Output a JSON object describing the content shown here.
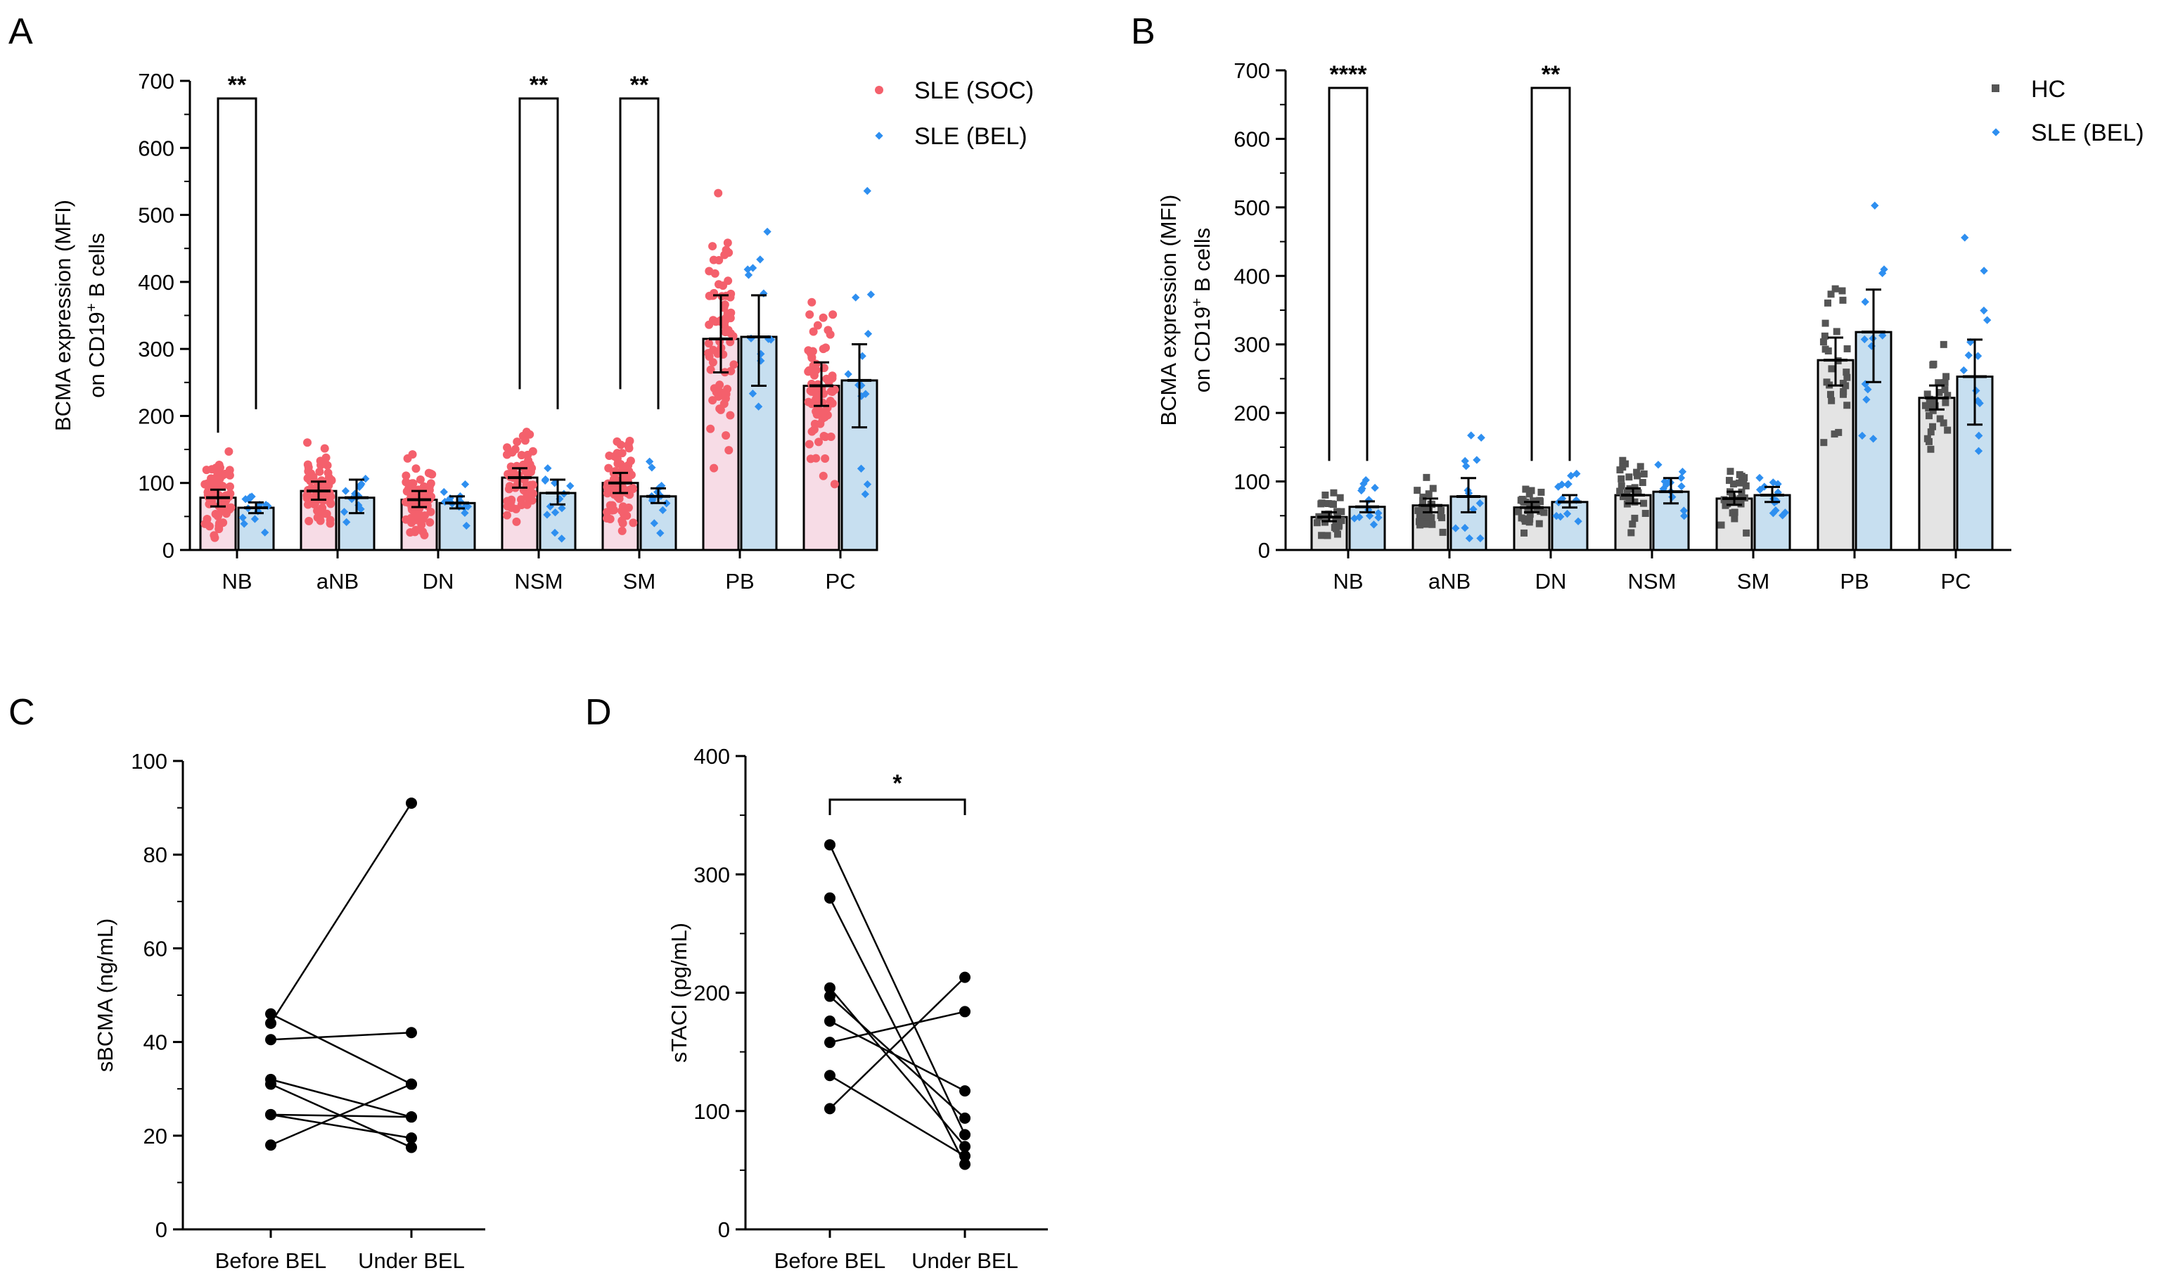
{
  "chart_data": [
    {
      "panel": "A",
      "type": "bar",
      "categories": [
        "NB",
        "aNB",
        "DN",
        "NSM",
        "SM",
        "PB",
        "PC"
      ],
      "ylabel": [
        "BCMA expression (MFI)",
        "on CD19",
        "+",
        " B cells"
      ],
      "ylim": [
        0,
        700
      ],
      "yticks": [
        0,
        100,
        200,
        300,
        400,
        500,
        600,
        700
      ],
      "legend_position": "top-right",
      "series": [
        {
          "name": "SLE (SOC)",
          "color": "#f4606c",
          "bar_color": "#f7dce6",
          "values": [
            78,
            88,
            75,
            108,
            100,
            315,
            245
          ],
          "err_low": [
            65,
            75,
            64,
            93,
            85,
            265,
            215
          ],
          "err_high": [
            90,
            102,
            88,
            122,
            115,
            380,
            280
          ]
        },
        {
          "name": "SLE (BEL)",
          "color": "#2e8ff0",
          "bar_color": "#c7dff0",
          "values": [
            63,
            78,
            70,
            85,
            80,
            318,
            253
          ],
          "err_low": [
            55,
            55,
            62,
            68,
            70,
            245,
            183
          ],
          "err_high": [
            71,
            105,
            80,
            105,
            92,
            380,
            307
          ]
        }
      ],
      "significance": [
        {
          "category": "NB",
          "label": "**"
        },
        {
          "category": "NSM",
          "label": "**"
        },
        {
          "category": "SM",
          "label": "**"
        }
      ]
    },
    {
      "panel": "B",
      "type": "bar",
      "categories": [
        "NB",
        "aNB",
        "DN",
        "NSM",
        "SM",
        "PB",
        "PC"
      ],
      "ylabel": [
        "BCMA expression (MFI)",
        "on CD19",
        "+",
        " B cells"
      ],
      "ylim": [
        0,
        700
      ],
      "yticks": [
        0,
        100,
        200,
        300,
        400,
        500,
        600,
        700
      ],
      "legend_position": "top-right",
      "series": [
        {
          "name": "HC",
          "color": "#555555",
          "bar_color": "#e4e4e4",
          "values": [
            48,
            65,
            62,
            80,
            75,
            277,
            222
          ],
          "err_low": [
            42,
            55,
            55,
            68,
            66,
            240,
            205
          ],
          "err_high": [
            55,
            75,
            70,
            90,
            85,
            310,
            240
          ]
        },
        {
          "name": "SLE (BEL)",
          "color": "#2e8ff0",
          "bar_color": "#c7dff0",
          "values": [
            63,
            78,
            70,
            85,
            80,
            318,
            253
          ],
          "err_low": [
            55,
            55,
            62,
            68,
            70,
            245,
            183
          ],
          "err_high": [
            71,
            105,
            80,
            105,
            92,
            380,
            307
          ]
        }
      ],
      "significance": [
        {
          "category": "NB",
          "label": "****"
        },
        {
          "category": "DN",
          "label": "**"
        }
      ]
    },
    {
      "panel": "C",
      "type": "line",
      "categories": [
        "Before BEL",
        "Under BEL"
      ],
      "ylabel": "sBCMA (ng/mL)",
      "ylim": [
        0,
        100
      ],
      "yticks": [
        0,
        20,
        40,
        60,
        80,
        100
      ],
      "pairs": [
        [
          46,
          31
        ],
        [
          44,
          91
        ],
        [
          40.5,
          42
        ],
        [
          32,
          24
        ],
        [
          31,
          17.5
        ],
        [
          24.5,
          24
        ],
        [
          24.5,
          19.5
        ],
        [
          18,
          31
        ]
      ]
    },
    {
      "panel": "D",
      "type": "line",
      "categories": [
        "Before BEL",
        "Under BEL"
      ],
      "ylabel": "sTACI (pg/mL)",
      "ylim": [
        0,
        400
      ],
      "yticks": [
        0,
        100,
        200,
        300,
        400
      ],
      "pairs": [
        [
          325,
          80
        ],
        [
          280,
          55
        ],
        [
          204,
          70
        ],
        [
          197,
          94
        ],
        [
          176,
          117
        ],
        [
          158,
          184
        ],
        [
          130,
          62
        ],
        [
          102,
          213
        ]
      ],
      "significance": [
        {
          "label": "*"
        }
      ]
    }
  ]
}
